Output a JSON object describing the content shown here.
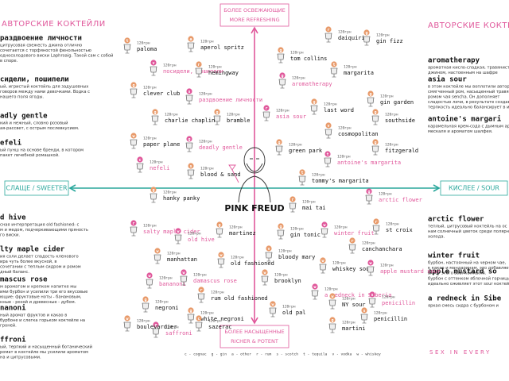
{
  "left_column": {
    "title": "АВТОРСКИЕ КОКТЕЙЛИ",
    "items": [
      {
        "name": "раздвоение личности",
        "description": [
          "цитрусовая свежесть джина отлично",
          "сочетается с торфяностой фенольностью",
          "односолодового виски Laphroaig. Такой сам с собой",
          "в споре."
        ]
      },
      {
        "name": "сидели, пошипели",
        "description": [
          "ый, игристый коктейль для задушевных",
          "говоров между нами девочками. Водка с",
          "нашего поля ягоды."
        ]
      },
      {
        "name": "adly gentle",
        "description": [
          "кий и нежный, словно розовый",
          "ая-рассвет, с острым послевкусием."
        ]
      },
      {
        "name": "efeli",
        "description": [
          "ый пунш на основе бренди, в котором",
          "пакет лечебной ромашкой."
        ]
      },
      {
        "name": "d hive",
        "description": [
          "сная интерпретация old fashioned: с",
          "м и медом, подчеркивающими пряность",
          "го виски."
        ]
      },
      {
        "name": "lty maple cider",
        "description": [
          "ия соли делает сладость кленового",
          "ира чуть более вкусной, в",
          "сочетании с теплым сидром и ромом",
          "дный баланс."
        ]
      },
      {
        "name": "mascus rose",
        "description": [
          "м ароматом и крепком напитке мы",
          "ими бурбон и усилили три его вкусовые",
          "ющие: фруктовые ноты - банановым,",
          "нные - розой и древесные - дубом."
        ]
      },
      {
        "name": "nanoni",
        "description": [
          "ный аромат фруктов и какао в",
          "бурбоне и слегка горьком коктейле на",
          "гроней."
        ]
      },
      {
        "name": "ffroni",
        "description": [
          "ый, терпкий и насыщенный ботанический",
          "ромат в коктейле мы усилили ароматом",
          "на и цитрусовыми."
        ]
      }
    ]
  },
  "right_column": {
    "title": "АВТОРСКИЕ КОКТЕЙ",
    "items": [
      {
        "name": "aromatherapy",
        "description": [
          "ароматная кисло-сладкая, травянистая",
          "джином, настоенным на шафре"
        ]
      },
      {
        "name": "asia sour",
        "description": [
          "в этом коктейле мы воплотили авторск",
          "смягченный ром, насыщенный травяно",
          "ромом чая sencha. Он дополняет",
          "сладостью личи, в результате создавая",
          "терпкость идеально балансирует в и"
        ]
      },
      {
        "name": "antoine's margari",
        "description": [
          "карамельная крем-сода с дымным ар",
          "мескаля и ароматом шалфея."
        ]
      },
      {
        "name": "arctic flower",
        "description": [
          "теплый, цитрусовый коктейль на ос",
          "нам солнечный цветок среди полярн",
          "холода."
        ]
      },
      {
        "name": "winter fruit",
        "description": [
          "бурбон, настоянный на черном чае,",
          "к какао и мандаринам, это добавляет",
          "вкусу этого sour-коктейля."
        ]
      },
      {
        "name": "apple mustard so",
        "description": [
          "бурбон с оттенком яблочной горчицы",
          "идеально оживляет этот sour коктей"
        ]
      },
      {
        "name": "a redneck in Sibe",
        "description": [
          "яркая смесь сидра с бурбоном и"
        ]
      }
    ]
  },
  "axes": {
    "top": [
      "БОЛЕЕ ОСВЕЖАЮЩИЕ",
      "MORE REFRESHING"
    ],
    "bottom": [
      "БОЛЕЕ НАСЫЩЕННЫЕ",
      "RICHER & POTENT"
    ],
    "left": "СЛАЩЕ / SWEETER",
    "right": "КИСЛЕЕ / SOUR"
  },
  "logo": "PINK FREUD",
  "map": {
    "items": [
      {
        "name": "paloma",
        "price": "120грн",
        "spirit": "t",
        "signature": false
      },
      {
        "name": "aperol spritz",
        "price": "120грн",
        "spirit": "a",
        "signature": false
      },
      {
        "name": "посидели, пошипели",
        "price": "120грн",
        "spirit": "v",
        "signature": true
      },
      {
        "name": "hemingway",
        "price": "120грн",
        "spirit": "r",
        "signature": false
      },
      {
        "name": "clever club",
        "price": "120грн",
        "spirit": "g",
        "signature": false
      },
      {
        "name": "раздвоение личности",
        "price": "120грн",
        "spirit": "s",
        "signature": true
      },
      {
        "name": "charlie chaplin",
        "price": "120грн",
        "spirit": "g",
        "signature": false
      },
      {
        "name": "bramble",
        "price": "120грн",
        "spirit": "g",
        "signature": false
      },
      {
        "name": "paper plane",
        "price": "120грн",
        "spirit": "w",
        "signature": false
      },
      {
        "name": "deadly gentle",
        "price": "120грн",
        "spirit": "g",
        "signature": true
      },
      {
        "name": "nefeli",
        "price": "120грн",
        "spirit": "c",
        "signature": true
      },
      {
        "name": "blood & sand",
        "price": "120грн",
        "spirit": "s",
        "signature": false
      },
      {
        "name": "tom collins",
        "price": "120грн",
        "spirit": "g",
        "signature": false
      },
      {
        "name": "daiquiri",
        "price": "120грн",
        "spirit": "r",
        "signature": false
      },
      {
        "name": "gin fizz",
        "price": "120грн",
        "spirit": "g",
        "signature": false
      },
      {
        "name": "margarita",
        "price": "120грн",
        "spirit": "t",
        "signature": false
      },
      {
        "name": "aromatherapy",
        "price": "120грн",
        "spirit": "g",
        "signature": true
      },
      {
        "name": "gin garden",
        "price": "120грн",
        "spirit": "g",
        "signature": false
      },
      {
        "name": "asia sour",
        "price": "120грн",
        "spirit": "r",
        "signature": true
      },
      {
        "name": "last word",
        "price": "120грн",
        "spirit": "g",
        "signature": false
      },
      {
        "name": "southside",
        "price": "120грн",
        "spirit": "g",
        "signature": false
      },
      {
        "name": "cosmopolitan",
        "price": "120грн",
        "spirit": "v",
        "signature": false
      },
      {
        "name": "green park",
        "price": "120грн",
        "spirit": "g",
        "signature": false
      },
      {
        "name": "fitzgerald",
        "price": "120грн",
        "spirit": "g",
        "signature": false
      },
      {
        "name": "antoine's margarita",
        "price": "120грн",
        "spirit": "t",
        "signature": true
      },
      {
        "name": "tommy's margarita",
        "price": "120грн",
        "spirit": "t",
        "signature": false
      },
      {
        "name": "hanky panky",
        "price": "120грн",
        "spirit": "g",
        "signature": false
      },
      {
        "name": "salty maple cider",
        "price": "120грн",
        "spirit": "r",
        "signature": true
      },
      {
        "name": "old hive",
        "price": "120грн",
        "spirit": "w",
        "signature": true
      },
      {
        "name": "martinez",
        "price": "120грн",
        "spirit": "g",
        "signature": false
      },
      {
        "name": "mai tai",
        "price": "120грн",
        "spirit": "r",
        "signature": false
      },
      {
        "name": "arctic flower",
        "price": "120грн",
        "spirit": "g",
        "signature": true
      },
      {
        "name": "st croix",
        "price": "120грн",
        "spirit": "r",
        "signature": false
      },
      {
        "name": "gin tonic",
        "price": "120грн",
        "spirit": "g",
        "signature": false
      },
      {
        "name": "winter fruit",
        "price": "120грн",
        "spirit": "w",
        "signature": true
      },
      {
        "name": "manhattan",
        "price": "120грн",
        "spirit": "w",
        "signature": false
      },
      {
        "name": "old fashioned",
        "price": "120грн",
        "spirit": "w",
        "signature": false
      },
      {
        "name": "bloody mary",
        "price": "120грн",
        "spirit": "v",
        "signature": false
      },
      {
        "name": "canchanchara",
        "price": "120грн",
        "spirit": "r",
        "signature": false
      },
      {
        "name": "bananoni",
        "price": "120грн",
        "spirit": "w",
        "signature": true
      },
      {
        "name": "damascus rose",
        "price": "120грн",
        "spirit": "w",
        "signature": true
      },
      {
        "name": "whiskey sour",
        "price": "120грн",
        "spirit": "w",
        "signature": false
      },
      {
        "name": "apple mustard sour",
        "price": "120грн",
        "spirit": "w",
        "signature": true
      },
      {
        "name": "negroni",
        "price": "120грн",
        "spirit": "g",
        "signature": false
      },
      {
        "name": "rum old fashioned",
        "price": "120грн",
        "spirit": "r",
        "signature": false
      },
      {
        "name": "brooklyn",
        "price": "120грн",
        "spirit": "w",
        "signature": false
      },
      {
        "name": "a redneck in Siberia",
        "price": "120грн",
        "spirit": "w",
        "signature": true
      },
      {
        "name": "penicillin",
        "price": "120грн",
        "spirit": "s",
        "signature": true
      },
      {
        "name": "white negroni",
        "price": "120грн",
        "spirit": "g",
        "signature": false
      },
      {
        "name": "saffroni",
        "price": "120грн",
        "spirit": "g",
        "signature": true
      },
      {
        "name": "NY sour",
        "price": "120грн",
        "spirit": "w",
        "signature": false
      },
      {
        "name": "old pal",
        "price": "120грн",
        "spirit": "w",
        "signature": false
      },
      {
        "name": "boulevardier",
        "price": "120грн",
        "spirit": "w",
        "signature": false
      },
      {
        "name": "sazerac",
        "price": "120грн",
        "spirit": "c",
        "signature": false
      },
      {
        "name": "penicillin",
        "price": "120грн",
        "spirit": "s",
        "signature": false
      },
      {
        "name": "martini",
        "price": "120грн",
        "spirit": "g",
        "signature": false
      }
    ]
  },
  "legend": [
    "c - cognac",
    "g - gin",
    "a - other",
    "r - rum",
    "s - scotch",
    "t - tequila",
    "v - vodka",
    "w - whiskey"
  ],
  "footer": "SEX IN EVERY"
}
